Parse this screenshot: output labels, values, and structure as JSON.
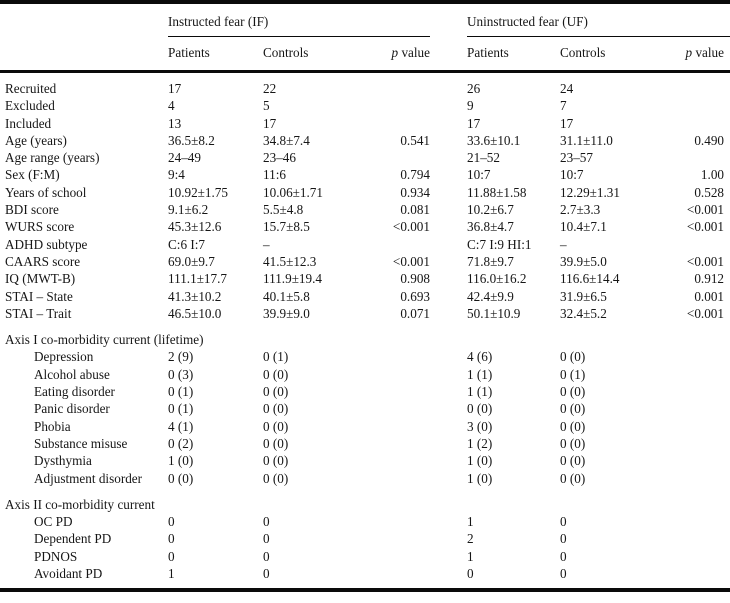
{
  "table": {
    "groups": [
      {
        "label": "Instructed fear (IF)"
      },
      {
        "label": "Uninstructed fear (UF)"
      }
    ],
    "subheaders": {
      "patients": "Patients",
      "controls": "Controls",
      "p_symbol": "p",
      "p_rest": " value"
    },
    "rows": [
      {
        "label": "Recruited",
        "cells": [
          "17",
          "22",
          "",
          "26",
          "24",
          ""
        ]
      },
      {
        "label": "Excluded",
        "cells": [
          "4",
          "5",
          "",
          "9",
          "7",
          ""
        ]
      },
      {
        "label": "Included",
        "cells": [
          "13",
          "17",
          "",
          "17",
          "17",
          ""
        ]
      },
      {
        "label": "Age (years)",
        "cells": [
          "36.5±8.2",
          "34.8±7.4",
          "0.541",
          "33.6±10.1",
          "31.1±11.0",
          "0.490"
        ]
      },
      {
        "label": "Age range (years)",
        "cells": [
          "24–49",
          "23–46",
          "",
          "21–52",
          "23–57",
          ""
        ]
      },
      {
        "label": "Sex (F:M)",
        "cells": [
          "9:4",
          "11:6",
          "0.794",
          "10:7",
          "10:7",
          "1.00"
        ]
      },
      {
        "label": "Years of school",
        "cells": [
          "10.92±1.75",
          "10.06±1.71",
          "0.934",
          "11.88±1.58",
          "12.29±1.31",
          "0.528"
        ]
      },
      {
        "label": "BDI score",
        "cells": [
          "9.1±6.2",
          "5.5±4.8",
          "0.081",
          "10.2±6.7",
          "2.7±3.3",
          "<0.001"
        ]
      },
      {
        "label": "WURS score",
        "cells": [
          "45.3±12.6",
          "15.7±8.5",
          "<0.001",
          "36.8±4.7",
          "10.4±7.1",
          "<0.001"
        ]
      },
      {
        "label": "ADHD subtype",
        "cells": [
          "C:6 I:7",
          "–",
          "",
          "C:7 I:9 HI:1",
          "–",
          ""
        ]
      },
      {
        "label": "CAARS score",
        "cells": [
          "69.0±9.7",
          "41.5±12.3",
          "<0.001",
          "71.8±9.7",
          "39.9±5.0",
          "<0.001"
        ]
      },
      {
        "label": "IQ (MWT-B)",
        "cells": [
          "111.1±17.7",
          "111.9±19.4",
          "0.908",
          "116.0±16.2",
          "116.6±14.4",
          "0.912"
        ]
      },
      {
        "label": "STAI – State",
        "cells": [
          "41.3±10.2",
          "40.1±5.8",
          "0.693",
          "42.4±9.9",
          "31.9±6.5",
          "0.001"
        ]
      },
      {
        "label": "STAI – Trait",
        "cells": [
          "46.5±10.0",
          "39.9±9.0",
          "0.071",
          "50.1±10.9",
          "32.4±5.2",
          "<0.001"
        ]
      },
      {
        "label": "Axis I co-morbidity current (lifetime)",
        "section": true,
        "gap": true
      },
      {
        "label": "Depression",
        "indent": true,
        "cells": [
          "2 (9)",
          "0 (1)",
          "",
          "4 (6)",
          "0 (0)",
          ""
        ]
      },
      {
        "label": "Alcohol abuse",
        "indent": true,
        "cells": [
          "0 (3)",
          "0 (0)",
          "",
          "1 (1)",
          "0 (1)",
          ""
        ]
      },
      {
        "label": "Eating disorder",
        "indent": true,
        "cells": [
          "0 (1)",
          "0 (0)",
          "",
          "1 (1)",
          "0 (0)",
          ""
        ]
      },
      {
        "label": "Panic disorder",
        "indent": true,
        "cells": [
          "0 (1)",
          "0 (0)",
          "",
          "0 (0)",
          "0 (0)",
          ""
        ]
      },
      {
        "label": "Phobia",
        "indent": true,
        "cells": [
          "4 (1)",
          "0 (0)",
          "",
          "3 (0)",
          "0 (0)",
          ""
        ]
      },
      {
        "label": "Substance misuse",
        "indent": true,
        "cells": [
          "0 (2)",
          "0 (0)",
          "",
          "1 (2)",
          "0 (0)",
          ""
        ]
      },
      {
        "label": "Dysthymia",
        "indent": true,
        "cells": [
          "1 (0)",
          "0 (0)",
          "",
          "1 (0)",
          "0 (0)",
          ""
        ]
      },
      {
        "label": "Adjustment disorder",
        "indent": true,
        "cells": [
          "0 (0)",
          "0 (0)",
          "",
          "1 (0)",
          "0 (0)",
          ""
        ]
      },
      {
        "label": "Axis II co-morbidity current",
        "section": true,
        "gap": true
      },
      {
        "label": "OC PD",
        "indent": true,
        "cells": [
          "0",
          "0",
          "",
          "1",
          "0",
          ""
        ]
      },
      {
        "label": "Dependent PD",
        "indent": true,
        "cells": [
          "0",
          "0",
          "",
          "2",
          "0",
          ""
        ]
      },
      {
        "label": "PDNOS",
        "indent": true,
        "cells": [
          "0",
          "0",
          "",
          "1",
          "0",
          ""
        ]
      },
      {
        "label": "Avoidant PD",
        "indent": true,
        "cells": [
          "1",
          "0",
          "",
          "0",
          "0",
          ""
        ]
      }
    ]
  }
}
